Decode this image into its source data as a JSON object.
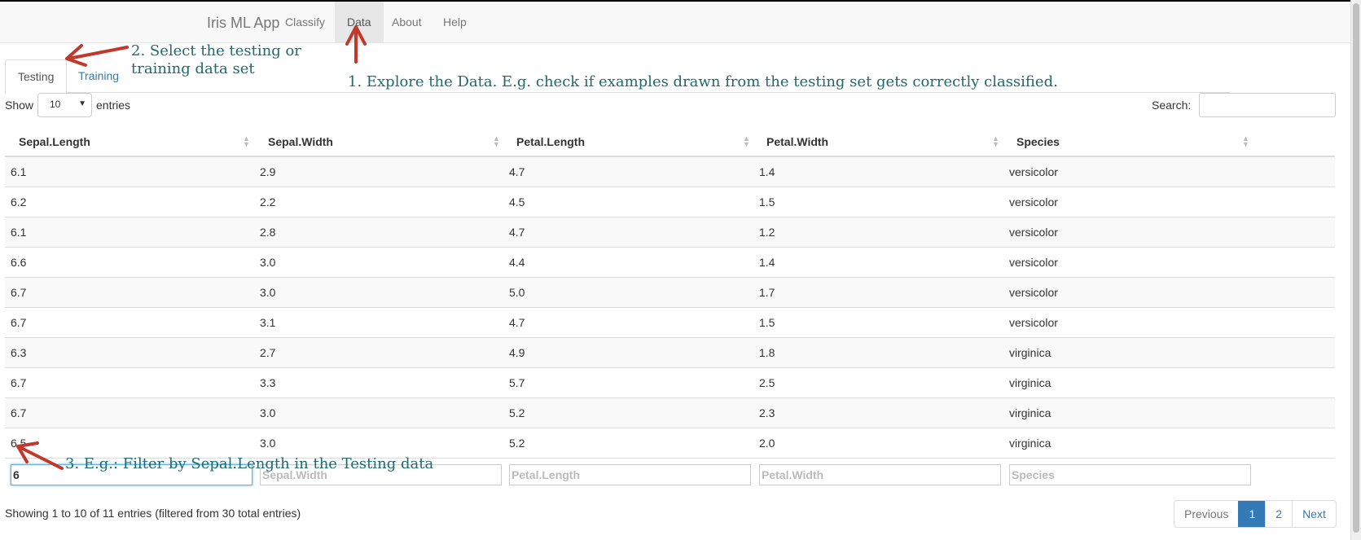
{
  "navbar": {
    "brand": "Iris ML App",
    "items": [
      {
        "label": "Classify",
        "active": false
      },
      {
        "label": "Data",
        "active": true
      },
      {
        "label": "About",
        "active": false
      },
      {
        "label": "Help",
        "active": false
      }
    ]
  },
  "tabs": [
    {
      "label": "Testing",
      "active": true
    },
    {
      "label": "Training",
      "active": false
    }
  ],
  "length_control": {
    "show_label": "Show",
    "value": "10",
    "entries_label": "entries"
  },
  "search": {
    "label": "Search:",
    "value": ""
  },
  "table": {
    "columns": [
      "Sepal.Length",
      "Sepal.Width",
      "Petal.Length",
      "Petal.Width",
      "Species"
    ],
    "rows": [
      [
        "6.1",
        "2.9",
        "4.7",
        "1.4",
        "versicolor"
      ],
      [
        "6.2",
        "2.2",
        "4.5",
        "1.5",
        "versicolor"
      ],
      [
        "6.1",
        "2.8",
        "4.7",
        "1.2",
        "versicolor"
      ],
      [
        "6.6",
        "3.0",
        "4.4",
        "1.4",
        "versicolor"
      ],
      [
        "6.7",
        "3.0",
        "5.0",
        "1.7",
        "versicolor"
      ],
      [
        "6.7",
        "3.1",
        "4.7",
        "1.5",
        "versicolor"
      ],
      [
        "6.3",
        "2.7",
        "4.9",
        "1.8",
        "virginica"
      ],
      [
        "6.7",
        "3.3",
        "5.7",
        "2.5",
        "virginica"
      ],
      [
        "6.7",
        "3.0",
        "5.2",
        "2.3",
        "virginica"
      ],
      [
        "6.5",
        "3.0",
        "5.2",
        "2.0",
        "virginica"
      ]
    ],
    "filters": [
      {
        "value": "6",
        "placeholder": "Sepal.Length"
      },
      {
        "value": "",
        "placeholder": "Sepal.Width"
      },
      {
        "value": "",
        "placeholder": "Petal.Length"
      },
      {
        "value": "",
        "placeholder": "Petal.Width"
      },
      {
        "value": "",
        "placeholder": "Species"
      }
    ]
  },
  "info": "Showing 1 to 10 of 11 entries (filtered from 30 total entries)",
  "pagination": {
    "previous": "Previous",
    "pages": [
      "1",
      "2"
    ],
    "current": "1",
    "next": "Next"
  },
  "annotations": {
    "step1": "1. Explore the Data. E.g. check if examples drawn from the testing set gets correctly classified.",
    "step2_line1": "2. Select the testing or",
    "step2_line2": "training data set",
    "step3": "3. E.g.: Filter by Sepal.Length in the Testing data"
  },
  "colors": {
    "annotation_text": "#1f6a6e",
    "arrow": "#c0392b",
    "pagination_active": "#337ab7",
    "link": "#337ab7"
  }
}
